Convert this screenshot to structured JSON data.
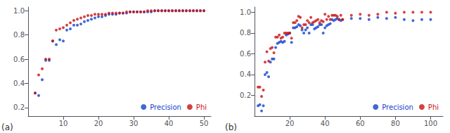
{
  "chart_data": [
    {
      "type": "scatter",
      "annotation": "(a)",
      "x": [
        2,
        3,
        4,
        5,
        6,
        7,
        8,
        9,
        10,
        11,
        12,
        13,
        14,
        15,
        16,
        17,
        18,
        19,
        20,
        21,
        22,
        23,
        24,
        25,
        26,
        27,
        28,
        29,
        30,
        31,
        32,
        33,
        34,
        35,
        36,
        37,
        38,
        39,
        40,
        41,
        42,
        43,
        44,
        45,
        46,
        47,
        48,
        49,
        50
      ],
      "series": [
        {
          "name": "Precision",
          "color": "#1144cc",
          "values": [
            0.32,
            0.3,
            0.43,
            0.59,
            0.59,
            0.75,
            0.72,
            0.76,
            0.75,
            0.84,
            0.85,
            0.88,
            0.88,
            0.89,
            0.91,
            0.92,
            0.93,
            0.94,
            0.95,
            0.95,
            0.96,
            0.97,
            0.97,
            0.97,
            0.98,
            0.98,
            0.98,
            0.99,
            0.99,
            0.99,
            0.99,
            0.99,
            0.99,
            0.99,
            1.0,
            1.0,
            1.0,
            1.0,
            1.0,
            1.0,
            1.0,
            1.0,
            1.0,
            1.0,
            1.0,
            1.0,
            1.0,
            1.0,
            1.0
          ]
        },
        {
          "name": "Phi",
          "color": "#cc1111",
          "values": [
            0.32,
            0.47,
            0.52,
            0.6,
            0.6,
            0.75,
            0.84,
            0.85,
            0.86,
            0.88,
            0.9,
            0.92,
            0.93,
            0.94,
            0.95,
            0.96,
            0.96,
            0.97,
            0.97,
            0.97,
            0.97,
            0.98,
            0.98,
            0.98,
            0.98,
            0.98,
            0.99,
            0.99,
            0.99,
            0.99,
            0.99,
            0.99,
            1.0,
            1.0,
            1.0,
            1.0,
            1.0,
            1.0,
            1.0,
            1.0,
            1.0,
            1.0,
            1.0,
            1.0,
            1.0,
            1.0,
            1.0,
            1.0,
            1.0
          ]
        }
      ],
      "xlim": [
        0,
        52
      ],
      "ylim": [
        0.13,
        1.03
      ],
      "xticks": [
        10,
        20,
        30,
        40,
        50
      ],
      "yticks": [
        0.2,
        0.4,
        0.6,
        0.8,
        {
          "value": 1.0,
          "label": "1.0"
        }
      ],
      "grid": false,
      "legend": "lower right"
    },
    {
      "type": "scatter",
      "annotation": "(b)",
      "x": [
        2,
        3,
        4,
        5,
        6,
        7,
        8,
        9,
        10,
        11,
        12,
        13,
        14,
        15,
        16,
        17,
        18,
        19,
        20,
        21,
        22,
        23,
        24,
        25,
        26,
        27,
        28,
        29,
        30,
        31,
        32,
        33,
        34,
        35,
        36,
        37,
        38,
        39,
        40,
        41,
        42,
        43,
        44,
        45,
        46,
        47,
        48,
        49,
        50,
        55,
        60,
        65,
        70,
        75,
        80,
        85,
        90,
        95,
        100
      ],
      "series": [
        {
          "name": "Precision",
          "color": "#1144cc",
          "values": [
            0.1,
            0.11,
            0.05,
            0.1,
            0.4,
            0.42,
            0.38,
            0.52,
            0.55,
            0.55,
            0.66,
            0.7,
            0.71,
            0.72,
            0.71,
            0.72,
            0.78,
            0.79,
            0.8,
            0.71,
            0.85,
            0.85,
            0.86,
            0.88,
            0.87,
            0.83,
            0.8,
            0.83,
            0.85,
            0.8,
            0.88,
            0.88,
            0.84,
            0.85,
            0.86,
            0.88,
            0.88,
            0.8,
            0.85,
            0.87,
            0.88,
            0.89,
            0.93,
            0.92,
            0.93,
            0.94,
            0.93,
            0.92,
            0.93,
            0.94,
            0.94,
            0.93,
            0.95,
            0.94,
            0.95,
            0.93,
            0.92,
            0.93,
            0.93
          ]
        },
        {
          "name": "Phi",
          "color": "#cc1111",
          "values": [
            0.28,
            0.28,
            0.19,
            0.25,
            0.52,
            0.62,
            0.53,
            0.65,
            0.66,
            0.61,
            0.76,
            0.76,
            0.78,
            0.75,
            0.76,
            0.8,
            0.8,
            0.8,
            0.8,
            0.75,
            0.9,
            0.9,
            0.92,
            0.96,
            0.95,
            0.85,
            0.88,
            0.88,
            0.92,
            0.9,
            0.95,
            0.9,
            0.91,
            0.92,
            0.93,
            0.9,
            0.92,
            0.91,
            0.98,
            0.93,
            0.96,
            0.93,
            0.97,
            0.97,
            0.97,
            0.96,
            0.93,
            0.97,
            0.93,
            0.97,
            0.98,
            0.97,
            0.98,
            1.0,
            0.99,
            1.0,
            1.0,
            1.0,
            1.0
          ]
        }
      ],
      "xlim": [
        0,
        107
      ],
      "ylim": [
        0.0,
        1.05
      ],
      "xticks": [
        20,
        40,
        60,
        80,
        100
      ],
      "yticks": [
        0.2,
        0.4,
        0.6,
        0.8,
        {
          "value": 1.0,
          "label": "1.0"
        }
      ],
      "grid": false,
      "legend": "lower right"
    }
  ]
}
